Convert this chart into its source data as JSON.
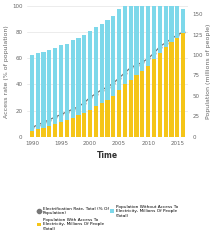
{
  "years": [
    1990,
    1991,
    1992,
    1993,
    1994,
    1995,
    1996,
    1997,
    1998,
    1999,
    2000,
    2001,
    2002,
    2003,
    2004,
    2005,
    2006,
    2007,
    2008,
    2009,
    2010,
    2011,
    2012,
    2013,
    2014,
    2015,
    2016
  ],
  "electrification_rate": [
    7,
    9,
    11,
    13,
    15,
    17,
    19,
    21,
    23,
    26,
    30,
    33,
    36,
    38,
    41,
    45,
    49,
    53,
    55,
    57,
    60,
    64,
    69,
    72,
    75,
    78,
    80
  ],
  "pop_with_access": [
    7,
    9,
    11,
    13,
    15,
    18,
    20,
    23,
    26,
    29,
    33,
    37,
    41,
    45,
    50,
    57,
    64,
    70,
    75,
    80,
    87,
    95,
    103,
    110,
    116,
    121,
    127
  ],
  "pop_without_access": [
    93,
    93,
    93,
    93,
    94,
    94,
    94,
    95,
    95,
    96,
    96,
    97,
    97,
    98,
    98,
    99,
    99,
    99,
    100,
    100,
    100,
    100,
    100,
    101,
    101,
    101,
    29
  ],
  "color_with_access": "#f5c518",
  "color_without_access": "#7dd8ea",
  "color_line": "#777777",
  "color_marker": "#777777",
  "color_background": "#ffffff",
  "ylabel_left": "Access rate (% of population)",
  "ylabel_right": "Population (millions of people)",
  "xlabel": "Time",
  "ylim_left": [
    0,
    100
  ],
  "ylim_right": [
    0,
    160
  ],
  "yticks_left": [
    0,
    20,
    40,
    60,
    80,
    100
  ],
  "yticks_right": [
    0,
    25,
    50,
    75,
    100,
    125,
    150
  ],
  "xticks": [
    1990,
    1995,
    2000,
    2005,
    2010,
    2015
  ],
  "xlim": [
    1989.2,
    2016.8
  ],
  "axis_fontsize": 4.5,
  "tick_fontsize": 4.0,
  "xlabel_fontsize": 5.5,
  "bar_width": 0.72,
  "legend_fontsize": 3.1
}
